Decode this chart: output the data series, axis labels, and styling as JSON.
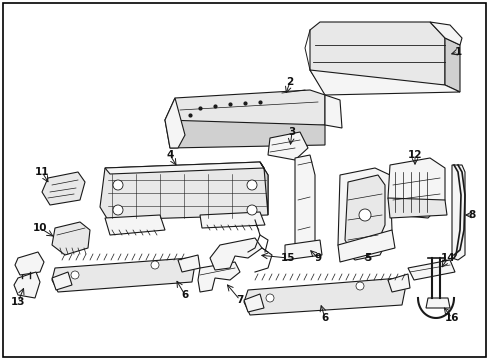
{
  "background_color": "#ffffff",
  "border_color": "#000000",
  "figsize": [
    4.89,
    3.6
  ],
  "dpi": 100,
  "line_color": "#1a1a1a",
  "fill_light": "#f5f5f5",
  "fill_mid": "#e8e8e8",
  "fill_dark": "#d0d0d0",
  "label_fontsize": 7.5,
  "label_color": "#111111"
}
